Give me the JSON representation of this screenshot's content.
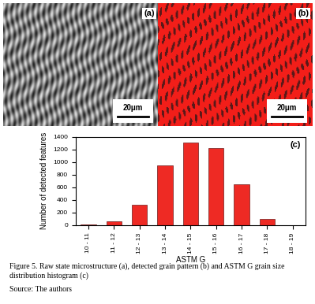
{
  "panels": [
    {
      "label": "(a)",
      "scale_bar": "20μm"
    },
    {
      "label": "(b)",
      "scale_bar": "20μm"
    }
  ],
  "chart_data": {
    "type": "bar",
    "panel_label": "(c)",
    "categories": [
      "10 - 11",
      "11 - 12",
      "12 - 13",
      "13 - 14",
      "14 - 15",
      "15 - 16",
      "16 - 17",
      "17 - 18",
      "18 - 19"
    ],
    "values": [
      5,
      60,
      320,
      950,
      1310,
      1215,
      645,
      90,
      0
    ],
    "color": "#ee2a24",
    "x_label": "ASTM G",
    "y_label": "Number of detected features",
    "ylim": [
      0,
      1400
    ],
    "yticks": [
      0,
      200,
      400,
      600,
      800,
      1000,
      1200,
      1400
    ],
    "grid": false
  },
  "caption": "Figure 5. Raw state microstructure (a), detected grain pattern (b) and ASTM G grain size distribution histogram (c)",
  "source": "Source: The authors"
}
